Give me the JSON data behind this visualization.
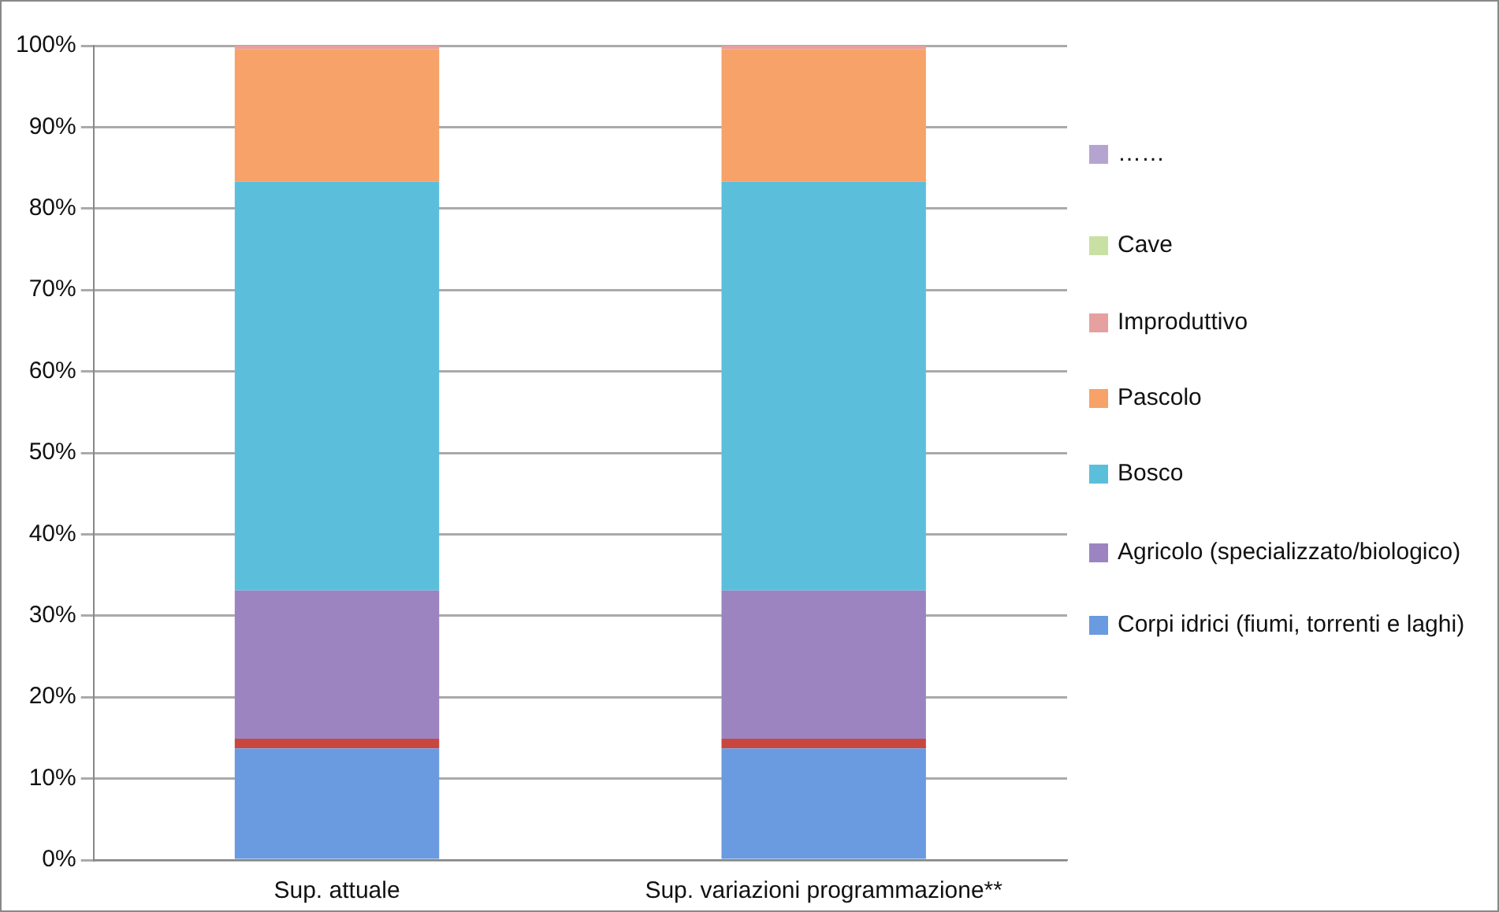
{
  "chart_data": {
    "type": "bar",
    "stacked": true,
    "categories": [
      "Sup. attuale",
      "Sup. variazioni programmazione**"
    ],
    "ylim": [
      0,
      100
    ],
    "yticks": [
      {
        "value": 0,
        "label": "0%"
      },
      {
        "value": 10,
        "label": "10%"
      },
      {
        "value": 20,
        "label": "20%"
      },
      {
        "value": 30,
        "label": "30%"
      },
      {
        "value": 40,
        "label": "40%"
      },
      {
        "value": 50,
        "label": "50%"
      },
      {
        "value": 60,
        "label": "60%"
      },
      {
        "value": 70,
        "label": "70%"
      },
      {
        "value": 80,
        "label": "80%"
      },
      {
        "value": 90,
        "label": "90%"
      },
      {
        "value": 100,
        "label": "100%"
      }
    ],
    "grid": "y",
    "legend": "right",
    "series": [
      {
        "name": "Corpi idrici (fiumi, torrenti e laghi)",
        "color": "#6a9ae0",
        "values": [
          13.7,
          13.7
        ]
      },
      {
        "color": "#c9463f",
        "values": [
          1.2,
          1.2
        ]
      },
      {
        "name": "Agricolo (specializzato/biologico)",
        "color": "#9c84c0",
        "values": [
          18.2,
          18.2
        ]
      },
      {
        "name": "Bosco",
        "color": "#5bbfdc",
        "values": [
          50.2,
          50.2
        ]
      },
      {
        "name": "Pascolo",
        "color": "#f7a268",
        "values": [
          16.3,
          16.3
        ]
      },
      {
        "name": "Improduttivo",
        "color": "#e6a0a0",
        "values": [
          0.4,
          0.4
        ]
      },
      {
        "name": "Cave",
        "color": "#c9e0a4",
        "values": [
          0,
          0
        ]
      },
      {
        "name": "……",
        "color": "#b6a4d0",
        "values": [
          0,
          0
        ]
      }
    ]
  }
}
